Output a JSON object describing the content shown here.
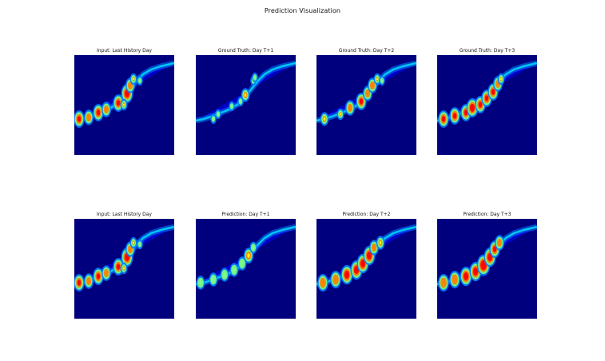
{
  "figure": {
    "title": "Prediction Visualization"
  },
  "rows": [
    {
      "panels": [
        {
          "title": "Input: Last History Day",
          "frame": "input"
        },
        {
          "title": "Ground Truth: Day T+1",
          "frame": "gt1"
        },
        {
          "title": "Ground Truth: Day T+2",
          "frame": "gt2"
        },
        {
          "title": "Ground Truth: Day T+3",
          "frame": "gt3"
        }
      ]
    },
    {
      "panels": [
        {
          "title": "Input: Last History Day",
          "frame": "input"
        },
        {
          "title": "Prediction: Day T+1",
          "frame": "pred1"
        },
        {
          "title": "Prediction: Day T+2",
          "frame": "pred2"
        },
        {
          "title": "Prediction: Day T+3",
          "frame": "pred3"
        }
      ]
    }
  ],
  "colormap": {
    "name": "jet",
    "background": "#00008b",
    "stops": [
      "#00007f",
      "#0000ff",
      "#007fff",
      "#00ffff",
      "#7fff7f",
      "#ffff00",
      "#ff7f00",
      "#ff0000"
    ]
  }
}
